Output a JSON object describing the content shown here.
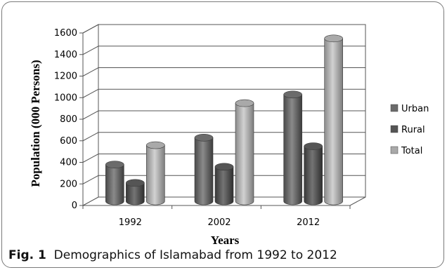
{
  "chart_data": {
    "type": "bar",
    "categories": [
      "1992",
      "2002",
      "2012"
    ],
    "series": [
      {
        "name": "Urban",
        "values": [
          340,
          590,
          990
        ],
        "color": "#6b6b6b"
      },
      {
        "name": "Rural",
        "values": [
          170,
          320,
          510
        ],
        "color": "#555555"
      },
      {
        "name": "Total",
        "values": [
          520,
          910,
          1510
        ],
        "color": "#a9a9a9"
      }
    ],
    "title": "",
    "xlabel": "Years",
    "ylabel": "Population (000 Persons)",
    "ylim": [
      0,
      1600
    ],
    "yticks": [
      "0",
      "200",
      "400",
      "600",
      "800",
      "1000",
      "1200",
      "1400",
      "1600"
    ],
    "grid": true,
    "legend_position": "right",
    "style": "3d-cylinder"
  },
  "caption": {
    "label": "Fig. 1",
    "text": "Demographics of Islamabad from 1992 to 2012"
  }
}
